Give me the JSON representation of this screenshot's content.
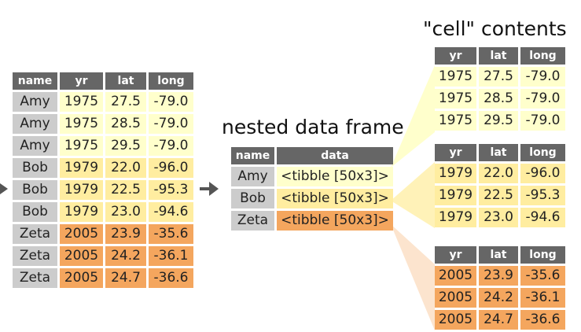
{
  "colors": {
    "header_bg": "#666666",
    "name_bg": "#cccccc",
    "amy": "#ffffcc",
    "bob": "#ffeda0",
    "zeta": "#f4a65e"
  },
  "original": {
    "headers": [
      "name",
      "yr",
      "lat",
      "long"
    ],
    "rows": [
      {
        "name": "Amy",
        "group": "amy",
        "yr": "1975",
        "lat": "27.5",
        "long": "-79.0"
      },
      {
        "name": "Amy",
        "group": "amy",
        "yr": "1975",
        "lat": "28.5",
        "long": "-79.0"
      },
      {
        "name": "Amy",
        "group": "amy",
        "yr": "1975",
        "lat": "29.5",
        "long": "-79.0"
      },
      {
        "name": "Bob",
        "group": "bob",
        "yr": "1979",
        "lat": "22.0",
        "long": "-96.0"
      },
      {
        "name": "Bob",
        "group": "bob",
        "yr": "1979",
        "lat": "22.5",
        "long": "-95.3"
      },
      {
        "name": "Bob",
        "group": "bob",
        "yr": "1979",
        "lat": "23.0",
        "long": "-94.6"
      },
      {
        "name": "Zeta",
        "group": "zeta",
        "yr": "2005",
        "lat": "23.9",
        "long": "-35.6"
      },
      {
        "name": "Zeta",
        "group": "zeta",
        "yr": "2005",
        "lat": "24.2",
        "long": "-36.1"
      },
      {
        "name": "Zeta",
        "group": "zeta",
        "yr": "2005",
        "lat": "24.7",
        "long": "-36.6"
      }
    ]
  },
  "nested": {
    "label": "nested data frame",
    "headers": [
      "name",
      "data"
    ],
    "rows": [
      {
        "name": "Amy",
        "group": "amy",
        "data": "<tibble [50x3]>"
      },
      {
        "name": "Bob",
        "group": "bob",
        "data": "<tibble [50x3]>"
      },
      {
        "name": "Zeta",
        "group": "zeta",
        "data": "<tibble [50x3]>"
      }
    ]
  },
  "cell_contents": {
    "label": "\"cell\" contents",
    "headers": [
      "yr",
      "lat",
      "long"
    ],
    "tables": [
      {
        "group": "amy",
        "rows": [
          [
            "1975",
            "27.5",
            "-79.0"
          ],
          [
            "1975",
            "28.5",
            "-79.0"
          ],
          [
            "1975",
            "29.5",
            "-79.0"
          ]
        ]
      },
      {
        "group": "bob",
        "rows": [
          [
            "1979",
            "22.0",
            "-96.0"
          ],
          [
            "1979",
            "22.5",
            "-95.3"
          ],
          [
            "1979",
            "23.0",
            "-94.6"
          ]
        ]
      },
      {
        "group": "zeta",
        "rows": [
          [
            "2005",
            "23.9",
            "-35.6"
          ],
          [
            "2005",
            "24.2",
            "-36.1"
          ],
          [
            "2005",
            "24.7",
            "-36.6"
          ]
        ]
      }
    ]
  }
}
